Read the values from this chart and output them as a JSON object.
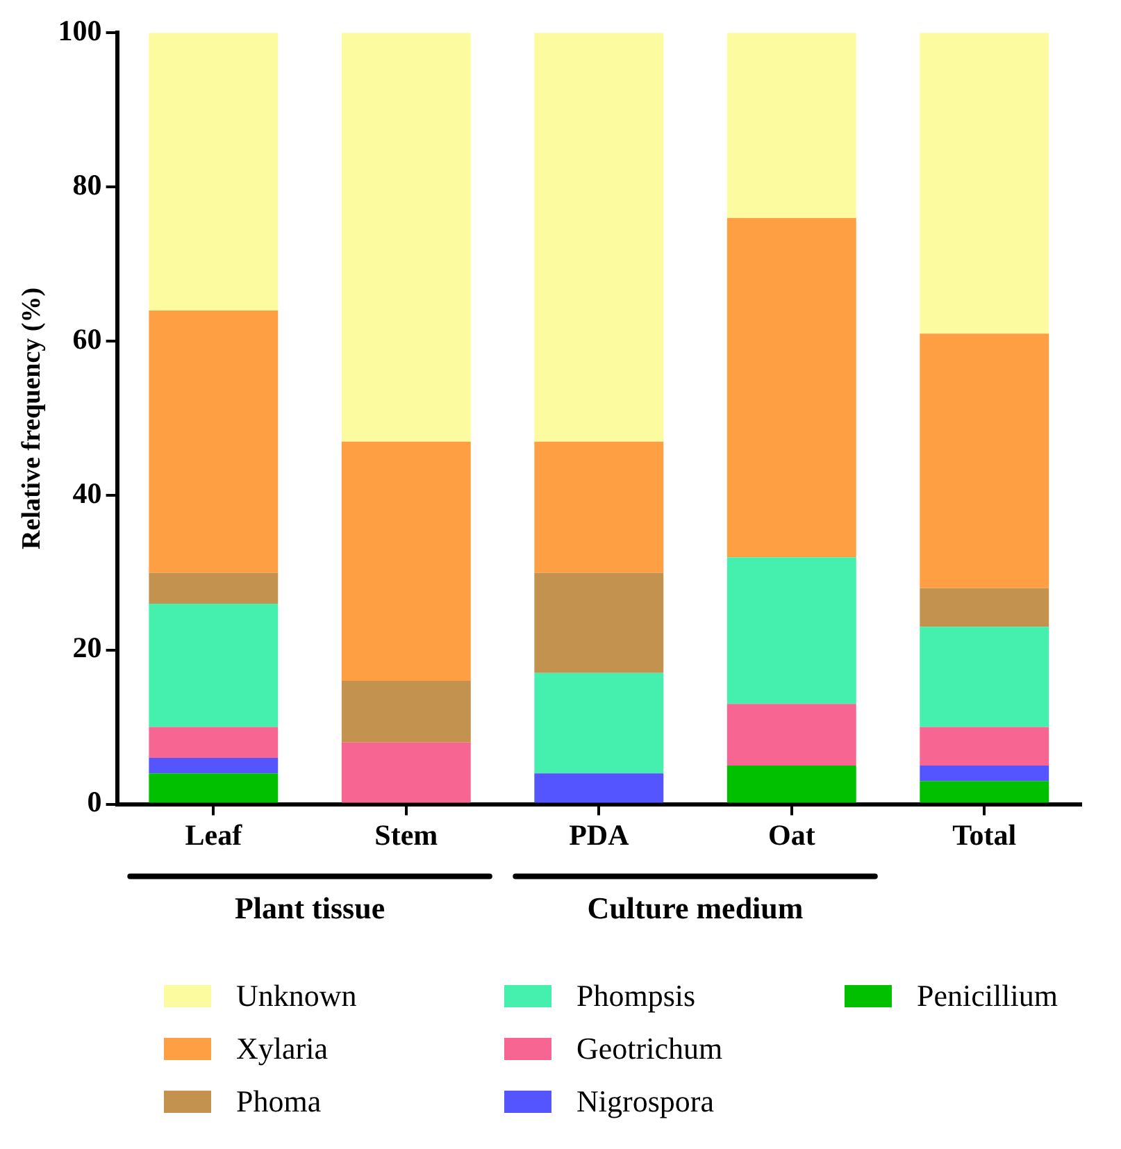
{
  "chart_data": {
    "type": "bar",
    "stacked": true,
    "ylabel": "Relative frequency (%)",
    "categories": [
      "Leaf",
      "Stem",
      "PDA",
      "Oat",
      "Total"
    ],
    "ylim": [
      0,
      100
    ],
    "yticks": [
      0,
      20,
      40,
      60,
      80,
      100
    ],
    "grid": false,
    "legend": "bottom",
    "annotations": [
      "Plant tissue",
      "Culture medium"
    ],
    "series": [
      {
        "name": "Penicillium",
        "color": "#00c000",
        "values": [
          4,
          0,
          0,
          5,
          3
        ]
      },
      {
        "name": "Nigrospora",
        "color": "#5555ff",
        "values": [
          2,
          0,
          4,
          0,
          2
        ]
      },
      {
        "name": "Geotrichum",
        "color": "#f76593",
        "values": [
          4,
          8,
          0,
          8,
          5
        ]
      },
      {
        "name": "Phompsis",
        "color": "#45f0ae",
        "values": [
          16,
          0,
          13,
          19,
          13
        ]
      },
      {
        "name": "Phoma",
        "color": "#c4924f",
        "values": [
          4,
          8,
          13,
          0,
          5
        ]
      },
      {
        "name": "Xylaria",
        "color": "#fd9f42",
        "values": [
          34,
          31,
          17,
          44,
          33
        ]
      },
      {
        "name": "Unknown",
        "color": "#fdfb9f",
        "values": [
          36,
          53,
          53,
          24,
          39
        ]
      }
    ]
  }
}
